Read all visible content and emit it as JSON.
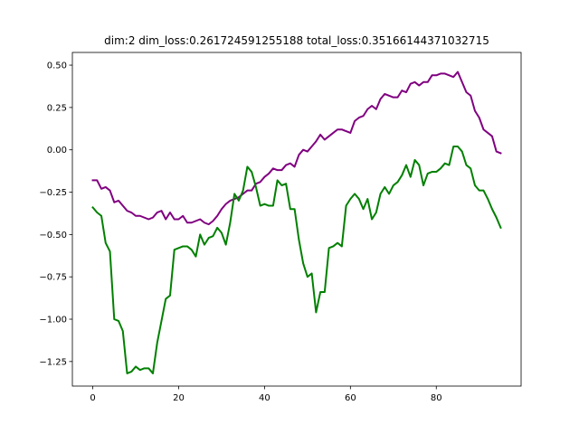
{
  "chart_data": {
    "type": "line",
    "title": "dim:2 dim_loss:0.261724591255188 total_loss:0.35166144371032715",
    "xlabel": "",
    "ylabel": "",
    "xlim": [
      -4.75,
      99.75
    ],
    "ylim": [
      -1.395,
      0.575
    ],
    "x_ticks": [
      0,
      20,
      40,
      60,
      80
    ],
    "x_tick_labels": [
      "0",
      "20",
      "40",
      "60",
      "80"
    ],
    "y_ticks": [
      0.5,
      0.25,
      0.0,
      -0.25,
      -0.5,
      -0.75,
      -1.0,
      -1.25
    ],
    "y_tick_labels": [
      "0.50",
      "0.25",
      "0.00",
      "−0.25",
      "−0.50",
      "−0.75",
      "−1.00",
      "−1.25"
    ],
    "grid": false,
    "x": [
      0,
      1,
      2,
      3,
      4,
      5,
      6,
      7,
      8,
      9,
      10,
      11,
      12,
      13,
      14,
      15,
      16,
      17,
      18,
      19,
      20,
      21,
      22,
      23,
      24,
      25,
      26,
      27,
      28,
      29,
      30,
      31,
      32,
      33,
      34,
      35,
      36,
      37,
      38,
      39,
      40,
      41,
      42,
      43,
      44,
      45,
      46,
      47,
      48,
      49,
      50,
      51,
      52,
      53,
      54,
      55,
      56,
      57,
      58,
      59,
      60,
      61,
      62,
      63,
      64,
      65,
      66,
      67,
      68,
      69,
      70,
      71,
      72,
      73,
      74,
      75,
      76,
      77,
      78,
      79,
      80,
      81,
      82,
      83,
      84,
      85,
      86,
      87,
      88,
      89,
      90,
      91,
      92,
      93,
      94,
      95
    ],
    "series": [
      {
        "color": "#800080",
        "values": [
          -0.18,
          -0.18,
          -0.23,
          -0.22,
          -0.24,
          -0.31,
          -0.3,
          -0.33,
          -0.36,
          -0.37,
          -0.39,
          -0.39,
          -0.4,
          -0.41,
          -0.4,
          -0.37,
          -0.36,
          -0.41,
          -0.37,
          -0.41,
          -0.41,
          -0.39,
          -0.43,
          -0.43,
          -0.42,
          -0.41,
          -0.43,
          -0.44,
          -0.42,
          -0.39,
          -0.35,
          -0.32,
          -0.3,
          -0.29,
          -0.28,
          -0.26,
          -0.24,
          -0.24,
          -0.2,
          -0.19,
          -0.16,
          -0.14,
          -0.11,
          -0.12,
          -0.12,
          -0.09,
          -0.08,
          -0.1,
          -0.03,
          0.0,
          -0.01,
          0.02,
          0.05,
          0.09,
          0.06,
          0.08,
          0.1,
          0.12,
          0.12,
          0.11,
          0.1,
          0.17,
          0.19,
          0.2,
          0.24,
          0.26,
          0.24,
          0.3,
          0.33,
          0.32,
          0.31,
          0.31,
          0.35,
          0.34,
          0.39,
          0.4,
          0.38,
          0.4,
          0.4,
          0.44,
          0.44,
          0.45,
          0.45,
          0.44,
          0.43,
          0.46,
          0.4,
          0.34,
          0.32,
          0.23,
          0.19,
          0.12,
          0.1,
          0.08,
          -0.01,
          -0.02
        ]
      },
      {
        "color": "#008000",
        "values": [
          -0.34,
          -0.37,
          -0.39,
          -0.55,
          -0.6,
          -1.0,
          -1.01,
          -1.07,
          -1.32,
          -1.31,
          -1.28,
          -1.3,
          -1.29,
          -1.29,
          -1.32,
          -1.14,
          -1.01,
          -0.88,
          -0.86,
          -0.59,
          -0.58,
          -0.57,
          -0.57,
          -0.59,
          -0.63,
          -0.5,
          -0.56,
          -0.52,
          -0.51,
          -0.46,
          -0.49,
          -0.56,
          -0.43,
          -0.26,
          -0.3,
          -0.24,
          -0.1,
          -0.13,
          -0.22,
          -0.33,
          -0.32,
          -0.33,
          -0.33,
          -0.18,
          -0.21,
          -0.2,
          -0.35,
          -0.35,
          -0.53,
          -0.67,
          -0.75,
          -0.73,
          -0.96,
          -0.84,
          -0.84,
          -0.58,
          -0.57,
          -0.55,
          -0.57,
          -0.33,
          -0.29,
          -0.26,
          -0.29,
          -0.35,
          -0.29,
          -0.41,
          -0.37,
          -0.26,
          -0.22,
          -0.26,
          -0.21,
          -0.19,
          -0.15,
          -0.09,
          -0.16,
          -0.06,
          -0.09,
          -0.21,
          -0.14,
          -0.13,
          -0.13,
          -0.11,
          -0.08,
          -0.09,
          0.02,
          0.02,
          -0.01,
          -0.09,
          -0.11,
          -0.21,
          -0.24,
          -0.24,
          -0.29,
          -0.35,
          -0.4,
          -0.46
        ]
      }
    ]
  }
}
